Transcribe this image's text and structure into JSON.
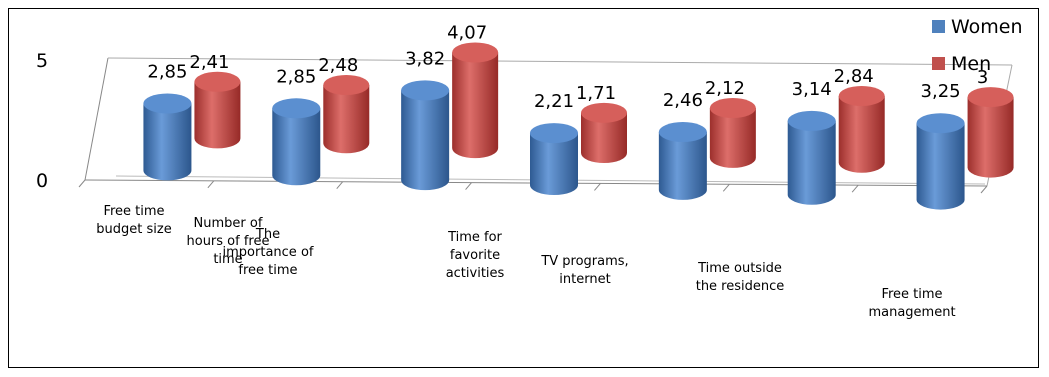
{
  "chart_data": {
    "type": "bar",
    "style": "3d-cylinder",
    "title": "",
    "xlabel": "",
    "ylabel": "",
    "ylim": [
      0,
      5
    ],
    "yticks": [
      "0",
      "5"
    ],
    "categories": [
      [
        "Free time",
        "budget size"
      ],
      [
        "Number of",
        "hours of free",
        "time"
      ],
      [
        "The",
        "importance of",
        "free time"
      ],
      [
        "Time for",
        "favorite",
        "activities"
      ],
      [
        "TV programs,",
        "internet"
      ],
      [
        "Time outside",
        "the residence"
      ],
      [
        "Free time",
        "management"
      ]
    ],
    "series": [
      {
        "name": "Women",
        "color": "#4f81bd",
        "values": [
          2.85,
          2.85,
          3.82,
          2.21,
          2.46,
          3.14,
          3.25
        ],
        "labels": [
          "2,85",
          "2,85",
          "3,82",
          "2,21",
          "2,46",
          "3,14",
          "3,25"
        ]
      },
      {
        "name": "Men",
        "color": "#c0504d",
        "values": [
          2.41,
          2.48,
          4.07,
          1.71,
          2.12,
          2.84,
          3
        ],
        "labels": [
          "2,41",
          "2,48",
          "4,07",
          "1,71",
          "2,12",
          "2,84",
          "3"
        ]
      }
    ],
    "legend": "top-right",
    "grid": false
  }
}
